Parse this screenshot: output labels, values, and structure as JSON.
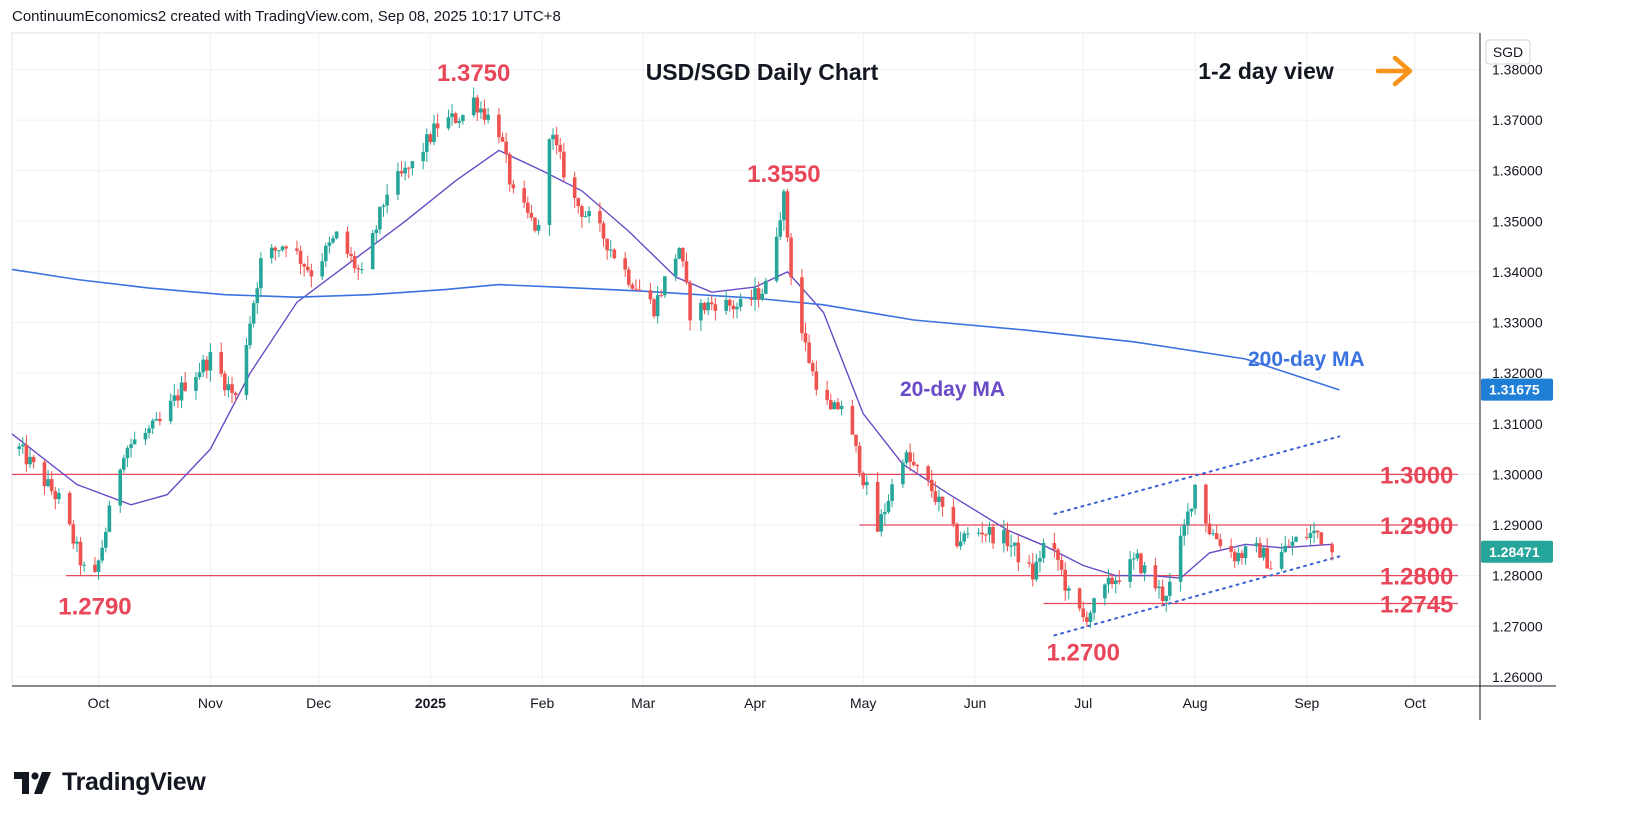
{
  "header": {
    "attribution": "ContinuumEconomics2 created with TradingView.com, Sep 08, 2025 10:17 UTC+8"
  },
  "brand": {
    "name": "TradingView",
    "logo_icon": "tradingview-logo-icon"
  },
  "colors": {
    "up": "#26a69a",
    "down": "#ef5350",
    "ma20": "#6a4ac6",
    "ma200": "#3a72e0",
    "level": "#e8475a",
    "label_red": "#e8475a",
    "channel": "#3a62d0",
    "arrow": "#f7931a",
    "grid": "#eef0f4",
    "axis_text": "#131722",
    "price_tag": "#1f7fd6"
  },
  "chart_data": {
    "type": "candlestick",
    "title": "USD/SGD Daily Chart",
    "currency": "SGD",
    "view_text": "1-2 day view",
    "view_icon": "arrow-right-icon",
    "ylim": [
      1.2582,
      1.3872
    ],
    "y_ticks": [
      "1.38000",
      "1.37000",
      "1.36000",
      "1.35000",
      "1.34000",
      "1.33000",
      "1.32000",
      "1.31000",
      "1.30000",
      "1.29000",
      "1.28000",
      "1.27000",
      "1.26000"
    ],
    "x_ticks": [
      {
        "label": "Oct",
        "date": "2024-10-01"
      },
      {
        "label": "Nov",
        "date": "2024-11-01"
      },
      {
        "label": "Dec",
        "date": "2024-12-01"
      },
      {
        "label": "2025",
        "date": "2025-01-01",
        "bold": true
      },
      {
        "label": "Feb",
        "date": "2025-02-01"
      },
      {
        "label": "Mar",
        "date": "2025-03-01"
      },
      {
        "label": "Apr",
        "date": "2025-04-01"
      },
      {
        "label": "May",
        "date": "2025-05-01"
      },
      {
        "label": "Jun",
        "date": "2025-06-01"
      },
      {
        "label": "Jul",
        "date": "2025-07-01"
      },
      {
        "label": "Aug",
        "date": "2025-08-01"
      },
      {
        "label": "Sep",
        "date": "2025-09-01"
      },
      {
        "label": "Oct",
        "date": "2025-10-01"
      }
    ],
    "x_range": [
      "2024-09-07",
      "2025-10-19"
    ],
    "price_points": [
      [
        "2024-09-09",
        1.305
      ],
      [
        "2024-09-20",
        1.295
      ],
      [
        "2024-09-27",
        1.281
      ],
      [
        "2024-09-30",
        1.2795
      ],
      [
        "2024-10-08",
        1.305
      ],
      [
        "2024-10-18",
        1.31
      ],
      [
        "2024-10-25",
        1.318
      ],
      [
        "2024-11-01",
        1.323
      ],
      [
        "2024-11-08",
        1.315
      ],
      [
        "2024-11-15",
        1.342
      ],
      [
        "2024-11-22",
        1.346
      ],
      [
        "2024-11-29",
        1.34
      ],
      [
        "2024-12-06",
        1.347
      ],
      [
        "2024-12-13",
        1.339
      ],
      [
        "2024-12-20",
        1.356
      ],
      [
        "2024-12-27",
        1.361
      ],
      [
        "2025-01-03",
        1.369
      ],
      [
        "2025-01-10",
        1.371
      ],
      [
        "2025-01-13",
        1.374
      ],
      [
        "2025-01-20",
        1.368
      ],
      [
        "2025-01-24",
        1.355
      ],
      [
        "2025-01-31",
        1.348
      ],
      [
        "2025-02-03",
        1.368
      ],
      [
        "2025-02-10",
        1.354
      ],
      [
        "2025-02-18",
        1.347
      ],
      [
        "2025-02-25",
        1.339
      ],
      [
        "2025-03-04",
        1.333
      ],
      [
        "2025-03-11",
        1.345
      ],
      [
        "2025-03-14",
        1.332
      ],
      [
        "2025-03-21",
        1.334
      ],
      [
        "2025-03-28",
        1.333
      ],
      [
        "2025-04-04",
        1.337
      ],
      [
        "2025-04-08",
        1.352
      ],
      [
        "2025-04-09",
        1.3545
      ],
      [
        "2025-04-11",
        1.34
      ],
      [
        "2025-04-14",
        1.328
      ],
      [
        "2025-04-17",
        1.32
      ],
      [
        "2025-04-22",
        1.312
      ],
      [
        "2025-04-25",
        1.314
      ],
      [
        "2025-04-30",
        1.302
      ],
      [
        "2025-05-05",
        1.289
      ],
      [
        "2025-05-12",
        1.304
      ],
      [
        "2025-05-20",
        1.297
      ],
      [
        "2025-05-27",
        1.287
      ],
      [
        "2025-06-03",
        1.289
      ],
      [
        "2025-06-10",
        1.287
      ],
      [
        "2025-06-17",
        1.28
      ],
      [
        "2025-06-20",
        1.286
      ],
      [
        "2025-06-24",
        1.283
      ],
      [
        "2025-06-27",
        1.276
      ],
      [
        "2025-07-01",
        1.2715
      ],
      [
        "2025-07-04",
        1.274
      ],
      [
        "2025-07-09",
        1.279
      ],
      [
        "2025-07-16",
        1.283
      ],
      [
        "2025-07-23",
        1.276
      ],
      [
        "2025-07-25",
        1.278
      ],
      [
        "2025-07-30",
        1.292
      ],
      [
        "2025-08-01",
        1.298
      ],
      [
        "2025-08-05",
        1.289
      ],
      [
        "2025-08-12",
        1.284
      ],
      [
        "2025-08-19",
        1.285
      ],
      [
        "2025-08-22",
        1.282
      ],
      [
        "2025-08-27",
        1.286
      ],
      [
        "2025-09-01",
        1.288
      ],
      [
        "2025-09-04",
        1.2885
      ],
      [
        "2025-09-08",
        1.2847
      ]
    ],
    "series": [
      {
        "name": "20-day MA",
        "points": [
          [
            "2024-09-07",
            1.308
          ],
          [
            "2024-09-25",
            1.298
          ],
          [
            "2024-10-10",
            1.294
          ],
          [
            "2024-10-20",
            1.296
          ],
          [
            "2024-11-01",
            1.305
          ],
          [
            "2024-11-12",
            1.32
          ],
          [
            "2024-11-25",
            1.334
          ],
          [
            "2024-12-10",
            1.342
          ],
          [
            "2024-12-25",
            1.35
          ],
          [
            "2025-01-08",
            1.358
          ],
          [
            "2025-01-20",
            1.364
          ],
          [
            "2025-02-01",
            1.36
          ],
          [
            "2025-02-12",
            1.356
          ],
          [
            "2025-02-25",
            1.348
          ],
          [
            "2025-03-10",
            1.339
          ],
          [
            "2025-03-20",
            1.336
          ],
          [
            "2025-04-01",
            1.337
          ],
          [
            "2025-04-10",
            1.34
          ],
          [
            "2025-04-20",
            1.332
          ],
          [
            "2025-05-01",
            1.312
          ],
          [
            "2025-05-12",
            1.302
          ],
          [
            "2025-05-25",
            1.296
          ],
          [
            "2025-06-10",
            1.289
          ],
          [
            "2025-06-20",
            1.286
          ],
          [
            "2025-07-01",
            1.282
          ],
          [
            "2025-07-10",
            1.28
          ],
          [
            "2025-07-20",
            1.28
          ],
          [
            "2025-07-28",
            1.2795
          ],
          [
            "2025-08-05",
            1.2845
          ],
          [
            "2025-08-15",
            1.2862
          ],
          [
            "2025-08-25",
            1.2855
          ],
          [
            "2025-09-08",
            1.2862
          ]
        ]
      },
      {
        "name": "200-day MA",
        "points": [
          [
            "2024-09-07",
            1.3405
          ],
          [
            "2024-09-25",
            1.3385
          ],
          [
            "2024-10-15",
            1.3368
          ],
          [
            "2024-11-05",
            1.3355
          ],
          [
            "2024-11-25",
            1.335
          ],
          [
            "2024-12-15",
            1.3355
          ],
          [
            "2025-01-05",
            1.3365
          ],
          [
            "2025-01-20",
            1.3375
          ],
          [
            "2025-02-05",
            1.337
          ],
          [
            "2025-03-01",
            1.3362
          ],
          [
            "2025-04-01",
            1.3348
          ],
          [
            "2025-04-20",
            1.3335
          ],
          [
            "2025-05-15",
            1.3305
          ],
          [
            "2025-06-15",
            1.3285
          ],
          [
            "2025-07-15",
            1.3262
          ],
          [
            "2025-08-15",
            1.3228
          ],
          [
            "2025-09-10",
            1.3167
          ]
        ]
      }
    ],
    "ma_labels": [
      "20-day MA",
      "200-day MA"
    ],
    "levels": [
      {
        "label": "1.3000",
        "value": 1.3,
        "from": "2024-09-07"
      },
      {
        "label": "1.2900",
        "value": 1.29,
        "from": "2025-04-30"
      },
      {
        "label": "1.2800",
        "value": 1.28,
        "from": "2024-09-22"
      },
      {
        "label": "1.2745",
        "value": 1.2745,
        "from": "2025-06-20"
      }
    ],
    "extreme_labels": [
      {
        "label": "1.3750",
        "date": "2025-01-13",
        "value": 1.375,
        "pos": "above"
      },
      {
        "label": "1.3550",
        "date": "2025-04-09",
        "value": 1.355,
        "pos": "above"
      },
      {
        "label": "1.2790",
        "date": "2024-09-30",
        "value": 1.279,
        "pos": "below"
      },
      {
        "label": "1.2700",
        "date": "2025-07-01",
        "value": 1.27,
        "pos": "below"
      }
    ],
    "channel_lines": [
      {
        "name": "upper",
        "from": [
          "2025-06-23",
          1.2922
        ],
        "to": [
          "2025-09-10",
          1.3075
        ]
      },
      {
        "name": "lower",
        "from": [
          "2025-06-23",
          1.2682
        ],
        "to": [
          "2025-09-10",
          1.2838
        ]
      }
    ],
    "price_tags": [
      {
        "label": "1.31675",
        "value": 1.31675,
        "color": "#1f7fd6"
      },
      {
        "label": "1.28471",
        "value": 1.28471,
        "color": "#26a69a"
      }
    ]
  }
}
